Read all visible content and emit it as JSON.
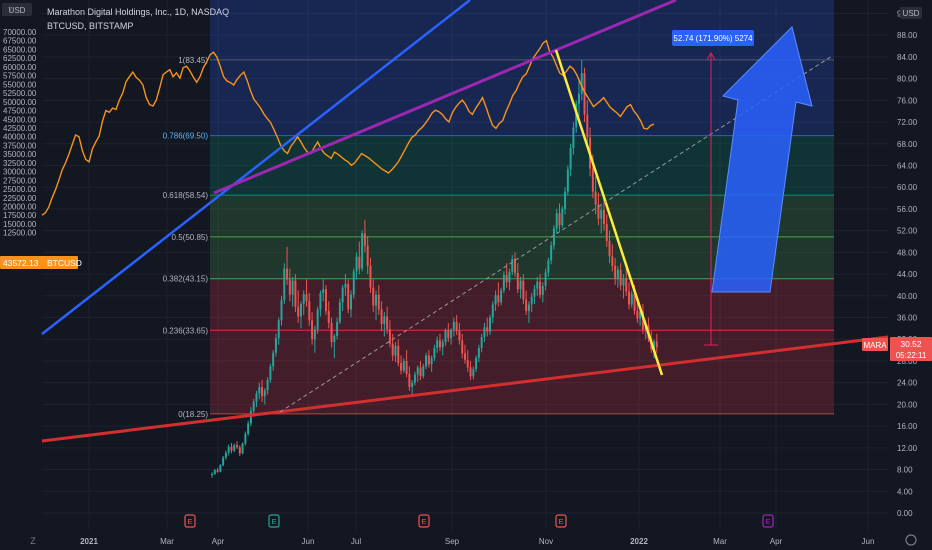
{
  "header": {
    "title": "Marathon Digital Holdings, Inc., 1D, NASDAQ",
    "overlay_symbol": "BTCUSD, BITSTAMP",
    "left_currency": "USD",
    "right_currency": "USD",
    "hidden_symbol_value": "7"
  },
  "colors": {
    "background": "#131722",
    "grid": "#1e222d",
    "up": "#26a69a",
    "down": "#ef5350",
    "btc_line": "#f7931a",
    "blue_trend": "#2962ff",
    "purple_trend": "#9c27b0",
    "red_trend": "#d32f2f",
    "yellow_trend": "#ffeb3b",
    "arrow": "#2962ff",
    "measure": "#e91e63"
  },
  "chart_data": {
    "type": "candlestick",
    "x_ticks": [
      "2021",
      "Mar",
      "Apr",
      "Jun",
      "Jul",
      "Sep",
      "Nov",
      "2022",
      "Mar",
      "Apr",
      "Jun"
    ],
    "left_axis": {
      "label": "BTCUSD",
      "ticks": [
        "70000.00",
        "67500.00",
        "65000.00",
        "62500.00",
        "60000.00",
        "57500.00",
        "55000.00",
        "52500.00",
        "50000.00",
        "47500.00",
        "45000.00",
        "42500.00",
        "40000.00",
        "37500.00",
        "35000.00",
        "32500.00",
        "30000.00",
        "27500.00",
        "25000.00",
        "22500.00",
        "20000.00",
        "17500.00",
        "15000.00",
        "12500.00"
      ],
      "current_value": "43572.13",
      "current_tag": "BTCUSD"
    },
    "right_axis": {
      "label": "MARA",
      "ticks": [
        "92.00",
        "88.00",
        "84.00",
        "80.00",
        "76.00",
        "72.00",
        "68.00",
        "64.00",
        "60.00",
        "56.00",
        "52.00",
        "48.00",
        "44.00",
        "40.00",
        "36.00",
        "32.00",
        "28.00",
        "24.00",
        "20.00",
        "16.00",
        "12.00",
        "8.00",
        "4.00",
        "0.00"
      ],
      "current_value": "30.52",
      "countdown": "05:22:11",
      "current_tag": "MARA"
    },
    "fibonacci": [
      {
        "level": "1",
        "price": 83.45,
        "label": "1(83.45)",
        "fill": "#5d606b"
      },
      {
        "level": "0.786",
        "price": 69.5,
        "label": "0.786(69.50)",
        "fill": "#2962ff"
      },
      {
        "level": "0.618",
        "price": 58.54,
        "label": "0.618(58.54)",
        "fill": "#089981"
      },
      {
        "level": "0.5",
        "price": 50.85,
        "label": "0.5(50.85)",
        "fill": "#4caf50"
      },
      {
        "level": "0.382",
        "price": 43.15,
        "label": "0.382(43.15)",
        "fill": "#4caf50"
      },
      {
        "level": "0.236",
        "price": 33.65,
        "label": "0.236(33.65)",
        "fill": "#f23645"
      },
      {
        "level": "0",
        "price": 18.25,
        "label": "0(18.25)",
        "fill": "#f23645"
      }
    ],
    "measure_label": "52.74 (171.90%) 5274",
    "event_markers": [
      {
        "text": "E",
        "color": "#ef5350"
      },
      {
        "text": "E",
        "color": "#26a69a"
      },
      {
        "text": "E",
        "color": "#ef5350"
      },
      {
        "text": "E",
        "color": "#ef5350"
      },
      {
        "text": "E",
        "color": "#9c27b0"
      }
    ],
    "mara_candles": [
      [
        0,
        7,
        7.5,
        6.5,
        7.2
      ],
      [
        1,
        7.2,
        8.1,
        7,
        7.9
      ],
      [
        2,
        7.9,
        8.3,
        7.4,
        7.6
      ],
      [
        3,
        7.6,
        9,
        7.5,
        8.8
      ],
      [
        4,
        8.8,
        10.5,
        8.6,
        10.2
      ],
      [
        5,
        10.2,
        11.5,
        9.8,
        11.1
      ],
      [
        6,
        11.1,
        12.6,
        10.6,
        12.2
      ],
      [
        7,
        12.2,
        12.9,
        11,
        11.5
      ],
      [
        8,
        11.5,
        12.8,
        11.2,
        12.5
      ],
      [
        9,
        12.5,
        13.2,
        11.8,
        12.1
      ],
      [
        10,
        12.1,
        12.5,
        10.5,
        11
      ],
      [
        11,
        11,
        13,
        10.8,
        12.8
      ],
      [
        12,
        12.8,
        15,
        12.4,
        14.6
      ],
      [
        13,
        14.6,
        17,
        14.2,
        16.5
      ],
      [
        14,
        16.5,
        19.5,
        16,
        18.8
      ],
      [
        15,
        18.8,
        21,
        18,
        20.5
      ],
      [
        16,
        20.5,
        22.5,
        19.5,
        22
      ],
      [
        17,
        22,
        24,
        21,
        23.2
      ],
      [
        18,
        23.2,
        24.5,
        20.5,
        21.5
      ],
      [
        19,
        21.5,
        23,
        20,
        22.6
      ],
      [
        20,
        22.6,
        25,
        21.8,
        24.5
      ],
      [
        21,
        24.5,
        27.5,
        24,
        27
      ],
      [
        22,
        27,
        30,
        26.2,
        29.5
      ],
      [
        23,
        29.5,
        33,
        28.8,
        32.2
      ],
      [
        24,
        32.2,
        36,
        31,
        35.5
      ],
      [
        25,
        35.5,
        40,
        34.5,
        39.2
      ],
      [
        26,
        39.2,
        46,
        38.5,
        45
      ],
      [
        27,
        45,
        49,
        42,
        43
      ],
      [
        28,
        43,
        45,
        39,
        40.2
      ],
      [
        29,
        40.2,
        43.5,
        38,
        42.8
      ],
      [
        30,
        42.8,
        44,
        37,
        38
      ],
      [
        31,
        38,
        41,
        35,
        36.2
      ],
      [
        32,
        36.2,
        39,
        34,
        38.5
      ],
      [
        33,
        38.5,
        41,
        36.5,
        40.3
      ],
      [
        34,
        40.3,
        43,
        38,
        39
      ],
      [
        35,
        39,
        40.5,
        34.5,
        35.5
      ],
      [
        36,
        35.5,
        37,
        31,
        32
      ],
      [
        37,
        32,
        34.5,
        29.5,
        33.8
      ],
      [
        38,
        33.8,
        38,
        33,
        37.5
      ],
      [
        39,
        37.5,
        41,
        36.2,
        40.5
      ],
      [
        40,
        40.5,
        43,
        39,
        41.2
      ],
      [
        41,
        41.2,
        42,
        36.5,
        37.2
      ],
      [
        42,
        37.2,
        39,
        34,
        35
      ],
      [
        43,
        35,
        36,
        30.5,
        31.5
      ],
      [
        44,
        31.5,
        33,
        28.5,
        32.6
      ],
      [
        45,
        32.6,
        36,
        32,
        35.2
      ],
      [
        46,
        35.2,
        39.5,
        34.8,
        38.8
      ],
      [
        47,
        38.8,
        42,
        37.2,
        41.5
      ],
      [
        48,
        41.5,
        44,
        40,
        42.2
      ],
      [
        49,
        42.2,
        43,
        36.8,
        37.5
      ],
      [
        50,
        37.5,
        41,
        36,
        40.2
      ],
      [
        51,
        40.2,
        45,
        39.5,
        44.5
      ],
      [
        52,
        44.5,
        48,
        43,
        47.2
      ],
      [
        53,
        47.2,
        50,
        44,
        45
      ],
      [
        54,
        45,
        52,
        44.5,
        51.5
      ],
      [
        55,
        51.5,
        54,
        48,
        49.2
      ],
      [
        56,
        49.2,
        51,
        44,
        45.5
      ],
      [
        57,
        45.5,
        47,
        40.5,
        41.5
      ],
      [
        58,
        41.5,
        43,
        37,
        38.2
      ],
      [
        59,
        38.2,
        41,
        35.5,
        40.2
      ],
      [
        60,
        40.2,
        42,
        36.5,
        37.5
      ],
      [
        61,
        37.5,
        39,
        33.5,
        34.8
      ],
      [
        62,
        34.8,
        37,
        32.5,
        36.2
      ],
      [
        63,
        36.2,
        38,
        33,
        33.8
      ],
      [
        64,
        33.8,
        35.5,
        30.5,
        31.2
      ],
      [
        65,
        31.2,
        33,
        28,
        29
      ],
      [
        66,
        29,
        31.5,
        27.8,
        30.8
      ],
      [
        67,
        30.8,
        32,
        27,
        27.6
      ],
      [
        68,
        27.6,
        29,
        25.5,
        26.2
      ],
      [
        69,
        26.2,
        28.5,
        25.8,
        28
      ],
      [
        70,
        28,
        30,
        25,
        25.6
      ],
      [
        71,
        25.6,
        27,
        22.5,
        23.2
      ],
      [
        72,
        23.2,
        24.5,
        21.5,
        24
      ],
      [
        73,
        24,
        26,
        23.5,
        25.5
      ],
      [
        74,
        25.5,
        27.2,
        24.2,
        26.8
      ],
      [
        75,
        26.8,
        28,
        24.5,
        25.2
      ],
      [
        76,
        25.2,
        27.5,
        24.8,
        27
      ],
      [
        77,
        27,
        29.5,
        26.5,
        29
      ],
      [
        78,
        29,
        30,
        26.8,
        27.4
      ],
      [
        79,
        27.4,
        29,
        26,
        28.5
      ],
      [
        80,
        28.5,
        31,
        28,
        30.4
      ],
      [
        81,
        30.4,
        32.5,
        29.5,
        31.8
      ],
      [
        82,
        31.8,
        33,
        29.8,
        30.5
      ],
      [
        83,
        30.5,
        32,
        29,
        31.5
      ],
      [
        84,
        31.5,
        34,
        30.8,
        33.6
      ],
      [
        85,
        33.6,
        35,
        31.5,
        32.2
      ],
      [
        86,
        32.2,
        34,
        31,
        33.8
      ],
      [
        87,
        33.8,
        36,
        32.5,
        35.2
      ],
      [
        88,
        35.2,
        36.5,
        32.8,
        33.5
      ],
      [
        89,
        33.5,
        35,
        31,
        31.8
      ],
      [
        90,
        31.8,
        33,
        28.5,
        29.4
      ],
      [
        91,
        29.4,
        31,
        27.5,
        28.2
      ],
      [
        92,
        28.2,
        30,
        26,
        26.8
      ],
      [
        93,
        26.8,
        28,
        24.5,
        25.2
      ],
      [
        94,
        25.2,
        27,
        24.6,
        26.5
      ],
      [
        95,
        26.5,
        29,
        26,
        28.6
      ],
      [
        96,
        28.6,
        31,
        27.8,
        30.4
      ],
      [
        97,
        30.4,
        33,
        29.6,
        32.4
      ],
      [
        98,
        32.4,
        35,
        31.5,
        34.2
      ],
      [
        99,
        34.2,
        36,
        32.5,
        33.4
      ],
      [
        100,
        33.4,
        36.5,
        32.8,
        36
      ],
      [
        101,
        36,
        39,
        35,
        38.4
      ],
      [
        102,
        38.4,
        41,
        37.2,
        40.1
      ],
      [
        103,
        40.1,
        42.5,
        38,
        38.8
      ],
      [
        104,
        38.8,
        41.5,
        38.2,
        41
      ],
      [
        105,
        41,
        44.5,
        40.5,
        43.8
      ],
      [
        106,
        43.8,
        46,
        41.5,
        42.5
      ],
      [
        107,
        42.5,
        45,
        41,
        44.4
      ],
      [
        108,
        44.4,
        47.5,
        43.8,
        46.8
      ],
      [
        109,
        46.8,
        48,
        43.5,
        44.2
      ],
      [
        110,
        44.2,
        46,
        40.5,
        41.2
      ],
      [
        111,
        41.2,
        43.5,
        39.5,
        42.8
      ],
      [
        112,
        42.8,
        44,
        38.5,
        39.3
      ],
      [
        113,
        39.3,
        41,
        36.5,
        37.2
      ],
      [
        114,
        37.2,
        39,
        35,
        38.4
      ],
      [
        115,
        38.4,
        40.5,
        37,
        39.8
      ],
      [
        116,
        39.8,
        42,
        38.5,
        41.3
      ],
      [
        117,
        41.3,
        43.5,
        40,
        42.6
      ],
      [
        118,
        42.6,
        44,
        39.5,
        40.2
      ],
      [
        119,
        40.2,
        42.5,
        38.8,
        41.8
      ],
      [
        120,
        41.8,
        45,
        41,
        44.3
      ],
      [
        121,
        44.3,
        47,
        43.5,
        46.5
      ],
      [
        122,
        46.5,
        50,
        45.8,
        49.3
      ],
      [
        123,
        49.3,
        53,
        48.5,
        52.4
      ],
      [
        124,
        52.4,
        56,
        51.5,
        55.2
      ],
      [
        125,
        55.2,
        57,
        52,
        53
      ],
      [
        126,
        53,
        56.5,
        52.5,
        56
      ],
      [
        127,
        56,
        60,
        55,
        59.2
      ],
      [
        128,
        59.2,
        64,
        58.5,
        63.3
      ],
      [
        129,
        63.3,
        68,
        62,
        67.2
      ],
      [
        130,
        67.2,
        72,
        66,
        71
      ],
      [
        131,
        71,
        76,
        70,
        75.4
      ],
      [
        132,
        75.4,
        80,
        73,
        77.2
      ],
      [
        133,
        77.2,
        83.45,
        76,
        81
      ],
      [
        134,
        81,
        82,
        72,
        73.4
      ],
      [
        135,
        73.4,
        76,
        68,
        69.2
      ],
      [
        136,
        69.2,
        71,
        62,
        63.4
      ],
      [
        137,
        63.4,
        66,
        58,
        59.2
      ],
      [
        138,
        59.2,
        62,
        55,
        56.8
      ],
      [
        139,
        56.8,
        59,
        53,
        54.2
      ],
      [
        140,
        54.2,
        57,
        51.5,
        55.8
      ],
      [
        141,
        55.8,
        58,
        52,
        53.2
      ],
      [
        142,
        53.2,
        55,
        49,
        50.1
      ],
      [
        143,
        50.1,
        52,
        46,
        47.3
      ],
      [
        144,
        47.3,
        49.5,
        44.5,
        45.5
      ],
      [
        145,
        45.5,
        47,
        42,
        43.2
      ],
      [
        146,
        43.2,
        45.5,
        41.5,
        44.8
      ],
      [
        147,
        44.8,
        46,
        41,
        41.9
      ],
      [
        148,
        41.9,
        44,
        39.5,
        43.2
      ],
      [
        149,
        43.2,
        45,
        40,
        40.8
      ],
      [
        150,
        40.8,
        42.5,
        37.5,
        38.4
      ],
      [
        151,
        38.4,
        41,
        37.8,
        40.4
      ],
      [
        152,
        40.4,
        42,
        36.5,
        37.2
      ],
      [
        153,
        37.2,
        39,
        35,
        35.8
      ],
      [
        154,
        35.8,
        38,
        34.5,
        37.1
      ],
      [
        155,
        37.1,
        38.5,
        33,
        33.8
      ],
      [
        156,
        33.8,
        35.5,
        32,
        34.6
      ],
      [
        157,
        34.6,
        36,
        31.5,
        32.2
      ],
      [
        158,
        32.2,
        33.5,
        29.5,
        30.2
      ],
      [
        159,
        30.2,
        32,
        28.5,
        31.6
      ],
      [
        160,
        31.6,
        33,
        29.5,
        30.52
      ]
    ],
    "btc_series": [
      17500,
      18200,
      19800,
      22500,
      24800,
      27500,
      30500,
      32500,
      35000,
      37800,
      40500,
      40000,
      36000,
      33500,
      32800,
      36500,
      38500,
      40200,
      44500,
      47500,
      47000,
      48200,
      47800,
      50500,
      52500,
      55800,
      57200,
      58500,
      57000,
      56200,
      54800,
      51200,
      49200,
      48800,
      50500,
      54000,
      57800,
      58500,
      59200,
      57200,
      58300,
      56800,
      59800,
      60200,
      58800,
      57100,
      55600,
      57200,
      59800,
      61500,
      63500,
      64200,
      62800,
      60200,
      57200,
      56000,
      55500,
      54800,
      56400,
      57600,
      58500,
      56200,
      53200,
      50800,
      49500,
      48200,
      46500,
      45200,
      44000,
      42000,
      39800,
      37500,
      36000,
      35200,
      37200,
      38500,
      40000,
      38500,
      36800,
      35500,
      35200,
      37000,
      38500,
      36500,
      35200,
      34500,
      33800,
      35600,
      35000,
      34200,
      33400,
      32800,
      31800,
      32500,
      33800,
      35200,
      34600,
      34000,
      33200,
      32400,
      31600,
      30800,
      30200,
      29600,
      30500,
      31600,
      32800,
      34600,
      36400,
      38200,
      39800,
      40500,
      41800,
      42600,
      43800,
      45200,
      46800,
      47600,
      47200,
      46400,
      45200,
      44200,
      46800,
      48400,
      49600,
      50500,
      49200,
      47200,
      46400,
      48200,
      49600,
      51200,
      48600,
      45800,
      43200,
      42400,
      43800,
      44600,
      47200,
      49400,
      51800,
      53200,
      55400,
      57200,
      58000,
      60200,
      62400,
      63800,
      65200,
      66800,
      67500,
      64200,
      62800,
      60400,
      58200,
      57600,
      58800,
      60200,
      59400,
      57800,
      55600,
      53400,
      51800,
      50200,
      48600,
      49400,
      50200,
      51200,
      49800,
      48400,
      47600,
      46800,
      45800,
      47200,
      48600,
      49200,
      47400,
      46200,
      44600,
      42400,
      42200,
      43200,
      43572
    ]
  }
}
